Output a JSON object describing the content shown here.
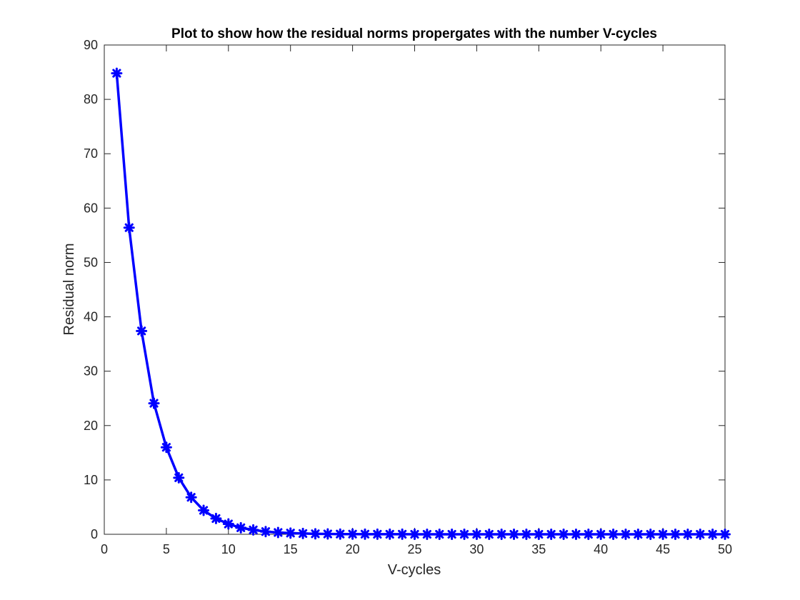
{
  "chart_data": {
    "type": "line",
    "title": "Plot to show how the residual norms propergates with the number V-cycles",
    "xlabel": "V-cycles",
    "ylabel": "Residual norm",
    "xlim": [
      0,
      50
    ],
    "ylim": [
      0,
      90
    ],
    "x_ticks": [
      0,
      5,
      10,
      15,
      20,
      25,
      30,
      35,
      40,
      45,
      50
    ],
    "y_ticks": [
      0,
      10,
      20,
      30,
      40,
      50,
      60,
      70,
      80,
      90
    ],
    "grid": false,
    "legend": "none",
    "line_color": "#0000ff",
    "marker": "asterisk",
    "series": [
      {
        "x": [
          1,
          2,
          3,
          4,
          5,
          6,
          7,
          8,
          9,
          10,
          11,
          12,
          13,
          14,
          15,
          16,
          17,
          18,
          19,
          20,
          21,
          22,
          23,
          24,
          25,
          26,
          27,
          28,
          29,
          30,
          31,
          32,
          33,
          34,
          35,
          36,
          37,
          38,
          39,
          40,
          41,
          42,
          43,
          44,
          45,
          46,
          47,
          48,
          49,
          50
        ],
        "values": [
          84.8,
          56.4,
          37.4,
          24.1,
          16.0,
          10.4,
          6.8,
          4.4,
          2.9,
          1.9,
          1.2,
          0.8,
          0.5,
          0.33,
          0.22,
          0.14,
          0.09,
          0.06,
          0.04,
          0.03,
          0.02,
          0.01,
          0.01,
          0.01,
          0,
          0,
          0,
          0,
          0,
          0,
          0,
          0,
          0,
          0,
          0,
          0,
          0,
          0,
          0,
          0,
          0,
          0,
          0,
          0,
          0,
          0,
          0,
          0,
          0,
          0
        ]
      }
    ]
  }
}
